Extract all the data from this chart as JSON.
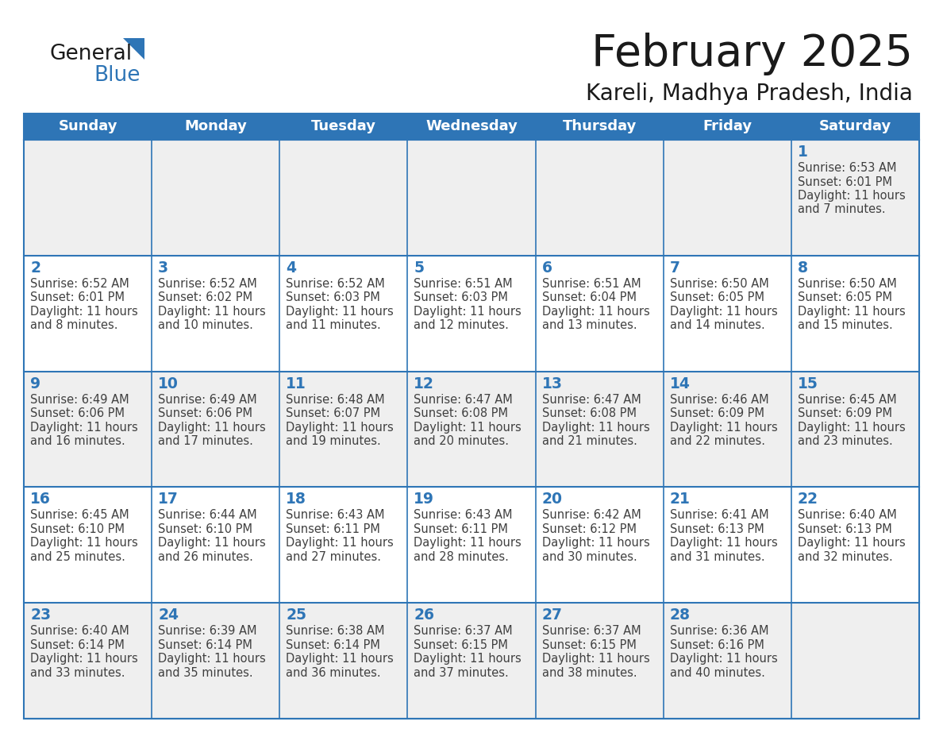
{
  "title": "February 2025",
  "subtitle": "Kareli, Madhya Pradesh, India",
  "header_bg": "#2E75B6",
  "header_text_color": "#FFFFFF",
  "cell_border_color": "#2E75B6",
  "day_number_color": "#2E75B6",
  "cell_text_color": "#404040",
  "background_color": "#FFFFFF",
  "cell_bg_even": "#EFEFEF",
  "cell_bg_odd": "#FFFFFF",
  "days_of_week": [
    "Sunday",
    "Monday",
    "Tuesday",
    "Wednesday",
    "Thursday",
    "Friday",
    "Saturday"
  ],
  "calendar_data": [
    [
      null,
      null,
      null,
      null,
      null,
      null,
      {
        "day": 1,
        "sunrise": "6:53 AM",
        "sunset": "6:01 PM",
        "daylight_hours": 11,
        "daylight_minutes": 7
      }
    ],
    [
      {
        "day": 2,
        "sunrise": "6:52 AM",
        "sunset": "6:01 PM",
        "daylight_hours": 11,
        "daylight_minutes": 8
      },
      {
        "day": 3,
        "sunrise": "6:52 AM",
        "sunset": "6:02 PM",
        "daylight_hours": 11,
        "daylight_minutes": 10
      },
      {
        "day": 4,
        "sunrise": "6:52 AM",
        "sunset": "6:03 PM",
        "daylight_hours": 11,
        "daylight_minutes": 11
      },
      {
        "day": 5,
        "sunrise": "6:51 AM",
        "sunset": "6:03 PM",
        "daylight_hours": 11,
        "daylight_minutes": 12
      },
      {
        "day": 6,
        "sunrise": "6:51 AM",
        "sunset": "6:04 PM",
        "daylight_hours": 11,
        "daylight_minutes": 13
      },
      {
        "day": 7,
        "sunrise": "6:50 AM",
        "sunset": "6:05 PM",
        "daylight_hours": 11,
        "daylight_minutes": 14
      },
      {
        "day": 8,
        "sunrise": "6:50 AM",
        "sunset": "6:05 PM",
        "daylight_hours": 11,
        "daylight_minutes": 15
      }
    ],
    [
      {
        "day": 9,
        "sunrise": "6:49 AM",
        "sunset": "6:06 PM",
        "daylight_hours": 11,
        "daylight_minutes": 16
      },
      {
        "day": 10,
        "sunrise": "6:49 AM",
        "sunset": "6:06 PM",
        "daylight_hours": 11,
        "daylight_minutes": 17
      },
      {
        "day": 11,
        "sunrise": "6:48 AM",
        "sunset": "6:07 PM",
        "daylight_hours": 11,
        "daylight_minutes": 19
      },
      {
        "day": 12,
        "sunrise": "6:47 AM",
        "sunset": "6:08 PM",
        "daylight_hours": 11,
        "daylight_minutes": 20
      },
      {
        "day": 13,
        "sunrise": "6:47 AM",
        "sunset": "6:08 PM",
        "daylight_hours": 11,
        "daylight_minutes": 21
      },
      {
        "day": 14,
        "sunrise": "6:46 AM",
        "sunset": "6:09 PM",
        "daylight_hours": 11,
        "daylight_minutes": 22
      },
      {
        "day": 15,
        "sunrise": "6:45 AM",
        "sunset": "6:09 PM",
        "daylight_hours": 11,
        "daylight_minutes": 23
      }
    ],
    [
      {
        "day": 16,
        "sunrise": "6:45 AM",
        "sunset": "6:10 PM",
        "daylight_hours": 11,
        "daylight_minutes": 25
      },
      {
        "day": 17,
        "sunrise": "6:44 AM",
        "sunset": "6:10 PM",
        "daylight_hours": 11,
        "daylight_minutes": 26
      },
      {
        "day": 18,
        "sunrise": "6:43 AM",
        "sunset": "6:11 PM",
        "daylight_hours": 11,
        "daylight_minutes": 27
      },
      {
        "day": 19,
        "sunrise": "6:43 AM",
        "sunset": "6:11 PM",
        "daylight_hours": 11,
        "daylight_minutes": 28
      },
      {
        "day": 20,
        "sunrise": "6:42 AM",
        "sunset": "6:12 PM",
        "daylight_hours": 11,
        "daylight_minutes": 30
      },
      {
        "day": 21,
        "sunrise": "6:41 AM",
        "sunset": "6:13 PM",
        "daylight_hours": 11,
        "daylight_minutes": 31
      },
      {
        "day": 22,
        "sunrise": "6:40 AM",
        "sunset": "6:13 PM",
        "daylight_hours": 11,
        "daylight_minutes": 32
      }
    ],
    [
      {
        "day": 23,
        "sunrise": "6:40 AM",
        "sunset": "6:14 PM",
        "daylight_hours": 11,
        "daylight_minutes": 33
      },
      {
        "day": 24,
        "sunrise": "6:39 AM",
        "sunset": "6:14 PM",
        "daylight_hours": 11,
        "daylight_minutes": 35
      },
      {
        "day": 25,
        "sunrise": "6:38 AM",
        "sunset": "6:14 PM",
        "daylight_hours": 11,
        "daylight_minutes": 36
      },
      {
        "day": 26,
        "sunrise": "6:37 AM",
        "sunset": "6:15 PM",
        "daylight_hours": 11,
        "daylight_minutes": 37
      },
      {
        "day": 27,
        "sunrise": "6:37 AM",
        "sunset": "6:15 PM",
        "daylight_hours": 11,
        "daylight_minutes": 38
      },
      {
        "day": 28,
        "sunrise": "6:36 AM",
        "sunset": "6:16 PM",
        "daylight_hours": 11,
        "daylight_minutes": 40
      },
      null
    ]
  ]
}
